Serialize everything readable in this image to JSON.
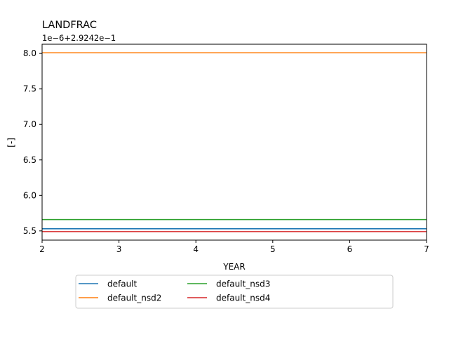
{
  "chart_data": {
    "type": "line",
    "title": "LANDFRAC",
    "offset_label": "1e−6+2.9242e−1",
    "xlabel": "YEAR",
    "ylabel": "[-]",
    "xlim": [
      2,
      7
    ],
    "ylim": [
      5.37,
      8.13
    ],
    "xticks": [
      2,
      3,
      4,
      5,
      6,
      7
    ],
    "xtick_labels": [
      "2",
      "3",
      "4",
      "5",
      "6",
      "7"
    ],
    "yticks": [
      5.5,
      6.0,
      6.5,
      7.0,
      7.5,
      8.0
    ],
    "ytick_labels": [
      "5.5",
      "6.0",
      "6.5",
      "7.0",
      "7.5",
      "8.0"
    ],
    "grid": false,
    "legend_placement": "below",
    "x": [
      2,
      7
    ],
    "series": [
      {
        "name": "default",
        "color": "#1f77b4",
        "values": [
          5.53,
          5.53
        ]
      },
      {
        "name": "default_nsd2",
        "color": "#ff7f0e",
        "values": [
          8.01,
          8.01
        ]
      },
      {
        "name": "default_nsd3",
        "color": "#2ca02c",
        "values": [
          5.66,
          5.66
        ]
      },
      {
        "name": "default_nsd4",
        "color": "#d62728",
        "values": [
          5.49,
          5.49
        ]
      }
    ]
  }
}
